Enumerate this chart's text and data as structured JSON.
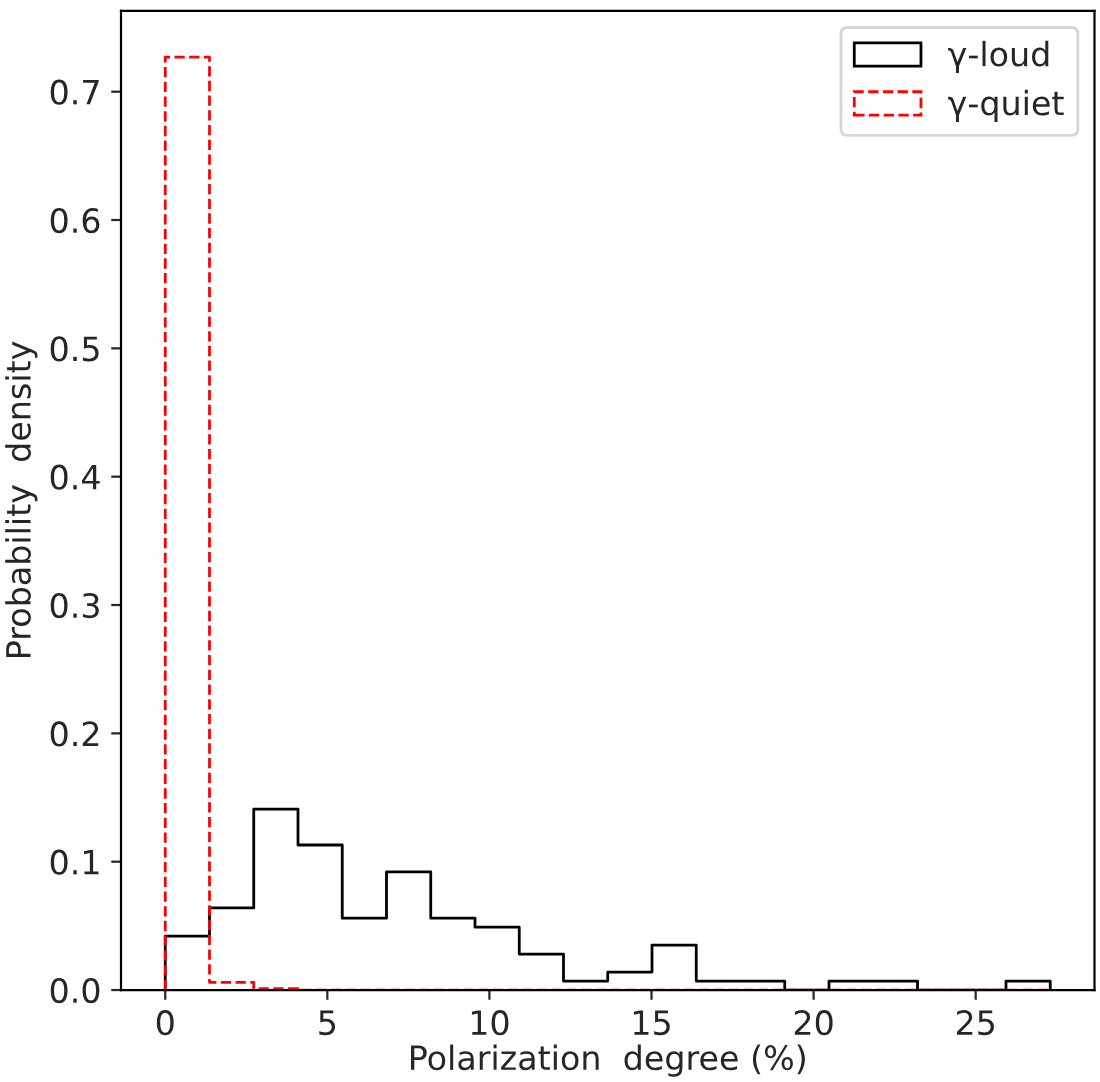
{
  "chart_data": {
    "type": "histogram",
    "xlabel": "Polarization  degree (%)",
    "ylabel": "Probability  density",
    "bins": [
      0,
      1.365,
      2.73,
      4.095,
      5.46,
      6.825,
      8.19,
      9.555,
      10.92,
      12.285,
      13.65,
      15.015,
      16.38,
      17.745,
      19.11,
      20.475,
      21.84,
      23.205,
      24.57,
      25.935,
      27.3
    ],
    "series": [
      {
        "name": "γ-loud",
        "color": "#000000",
        "line_style": "solid",
        "values": [
          0.042,
          0.064,
          0.141,
          0.113,
          0.056,
          0.092,
          0.056,
          0.049,
          0.028,
          0.007,
          0.014,
          0.035,
          0.007,
          0.007,
          0,
          0.007,
          0.007,
          0,
          0,
          0.007
        ]
      },
      {
        "name": "γ-quiet",
        "color": "#ff0000",
        "line_style": "dashed",
        "values": [
          0.727,
          0.006,
          0.001,
          0,
          0,
          0,
          0,
          0,
          0,
          0,
          0,
          0,
          0,
          0,
          0,
          0,
          0,
          0,
          0,
          0
        ]
      }
    ],
    "xlim": [
      -1.365,
      28.665
    ],
    "ylim": [
      0,
      0.763
    ],
    "xticks": [
      0,
      5,
      10,
      15,
      20,
      25
    ],
    "yticks": [
      {
        "value": 0,
        "label": "0.0"
      },
      0.1,
      0.2,
      0.3,
      0.4,
      0.5,
      0.6,
      0.7
    ],
    "legend": "top right",
    "grid": false
  }
}
